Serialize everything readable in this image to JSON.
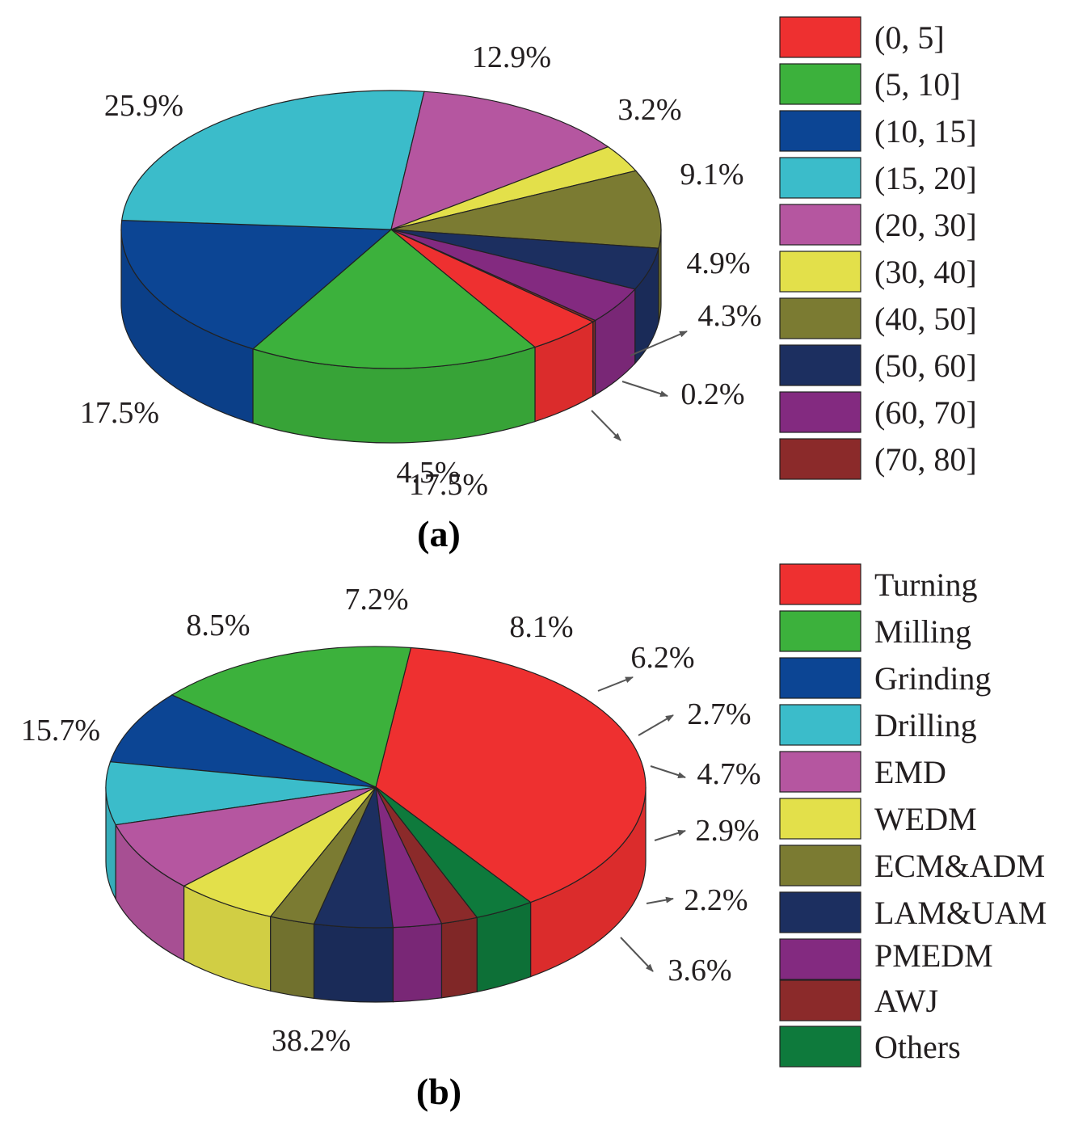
{
  "chart_data": [
    {
      "type": "pie",
      "caption": "(a)",
      "legend_position": "right",
      "slices": [
        {
          "name": "(0, 5]",
          "value": 4.5,
          "label": "4.5%",
          "color": "#ee3030"
        },
        {
          "name": "(5, 10]",
          "value": 17.5,
          "label": "17.5%",
          "color": "#3cb13c"
        },
        {
          "name": "(10, 15]",
          "value": 17.5,
          "label": "17.5%",
          "color": "#0c4594"
        },
        {
          "name": "(15, 20]",
          "value": 25.9,
          "label": "25.9%",
          "color": "#3bbcca"
        },
        {
          "name": "(20, 30]",
          "value": 12.9,
          "label": "12.9%",
          "color": "#b556a0"
        },
        {
          "name": "(30, 40]",
          "value": 3.2,
          "label": "3.2%",
          "color": "#e3e04a"
        },
        {
          "name": "(40, 50]",
          "value": 9.1,
          "label": "9.1%",
          "color": "#7b7b32"
        },
        {
          "name": "(50, 60]",
          "value": 4.9,
          "label": "4.9%",
          "color": "#1c2f60"
        },
        {
          "name": "(60, 70]",
          "value": 4.3,
          "label": "4.3%",
          "color": "#832a80"
        },
        {
          "name": "(70, 80]",
          "value": 0.2,
          "label": "0.2%",
          "color": "#8b2a2a"
        }
      ]
    },
    {
      "type": "pie",
      "caption": "(b)",
      "legend_position": "right",
      "slices": [
        {
          "name": "Turning",
          "value": 38.2,
          "label": "38.2%",
          "color": "#ee3030"
        },
        {
          "name": "Milling",
          "value": 15.7,
          "label": "15.7%",
          "color": "#3cb13c"
        },
        {
          "name": "Grinding",
          "value": 8.5,
          "label": "8.5%",
          "color": "#0c4594"
        },
        {
          "name": "Drilling",
          "value": 7.2,
          "label": "7.2%",
          "color": "#3bbcca"
        },
        {
          "name": "EMD",
          "value": 8.1,
          "label": "8.1%",
          "color": "#b556a0"
        },
        {
          "name": "WEDM",
          "value": 6.2,
          "label": "6.2%",
          "color": "#e3e04a"
        },
        {
          "name": "ECM&ADM",
          "value": 2.7,
          "label": "2.7%",
          "color": "#7b7b32"
        },
        {
          "name": "LAM&UAM",
          "value": 4.7,
          "label": "4.7%",
          "color": "#1c2f60"
        },
        {
          "name": "PMEDM",
          "value": 2.9,
          "label": "2.9%",
          "color": "#832a80"
        },
        {
          "name": "AWJ",
          "value": 2.2,
          "label": "2.2%",
          "color": "#8b2a2a"
        },
        {
          "name": "Others",
          "value": 3.6,
          "label": "3.6%",
          "color": "#0e7a3c"
        }
      ]
    }
  ]
}
